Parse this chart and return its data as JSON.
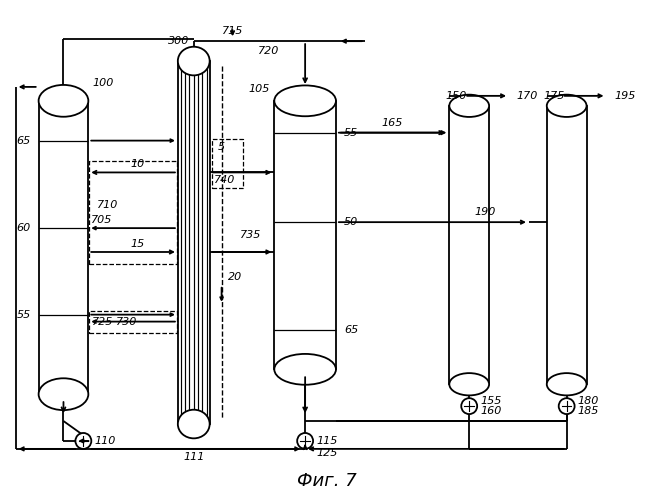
{
  "fig_width": 6.55,
  "fig_height": 5.0,
  "dpi": 100,
  "bg_color": "#ffffff",
  "line_color": "#000000",
  "title": "Фиг. 7",
  "title_fontsize": 13,
  "label_fontsize": 8.0
}
